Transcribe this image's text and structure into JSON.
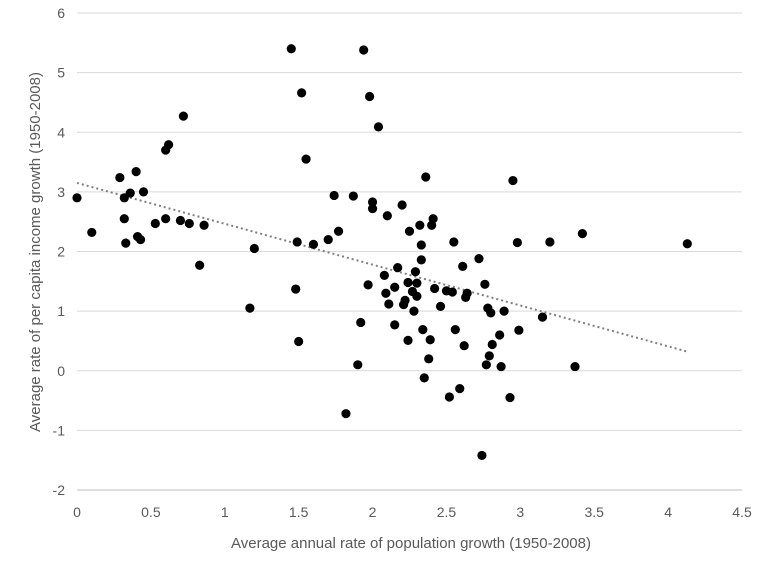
{
  "chart_data": {
    "type": "scatter",
    "title": "",
    "xlabel": "Average annual rate of population growth (1950-2008)",
    "ylabel": "Average rate of per capita income growth (1950-2008)",
    "xlim": [
      0,
      4.5
    ],
    "ylim": [
      -2,
      6
    ],
    "x_ticks": [
      "0",
      "0.5",
      "1",
      "1.5",
      "2",
      "2.5",
      "3",
      "3.5",
      "4",
      "4.5"
    ],
    "y_ticks": [
      "-2",
      "-1",
      "0",
      "1",
      "2",
      "3",
      "4",
      "5",
      "6"
    ],
    "grid": "horizontal",
    "legend": "none",
    "marker_color": "#000000",
    "trendline": {
      "style": "dotted",
      "color": "#7f7f7f",
      "from": [
        0,
        3.15
      ],
      "to": [
        4.13,
        0.32
      ]
    },
    "points": [
      [
        0.0,
        2.9
      ],
      [
        0.1,
        2.32
      ],
      [
        0.29,
        3.24
      ],
      [
        0.32,
        2.55
      ],
      [
        0.32,
        2.9
      ],
      [
        0.33,
        2.14
      ],
      [
        0.36,
        2.98
      ],
      [
        0.4,
        3.34
      ],
      [
        0.41,
        2.25
      ],
      [
        0.43,
        2.2
      ],
      [
        0.45,
        3.0
      ],
      [
        0.53,
        2.47
      ],
      [
        0.6,
        2.55
      ],
      [
        0.6,
        3.7
      ],
      [
        0.62,
        3.79
      ],
      [
        0.7,
        2.52
      ],
      [
        0.72,
        4.27
      ],
      [
        0.76,
        2.47
      ],
      [
        0.83,
        1.77
      ],
      [
        0.86,
        2.44
      ],
      [
        1.17,
        1.05
      ],
      [
        1.2,
        2.05
      ],
      [
        1.45,
        5.4
      ],
      [
        1.48,
        1.37
      ],
      [
        1.49,
        2.16
      ],
      [
        1.5,
        0.49
      ],
      [
        1.52,
        4.66
      ],
      [
        1.55,
        3.55
      ],
      [
        1.6,
        2.12
      ],
      [
        1.7,
        2.2
      ],
      [
        1.74,
        2.94
      ],
      [
        1.77,
        2.34
      ],
      [
        1.82,
        -0.72
      ],
      [
        1.87,
        2.93
      ],
      [
        1.9,
        0.1
      ],
      [
        1.92,
        0.81
      ],
      [
        1.94,
        5.38
      ],
      [
        1.97,
        1.44
      ],
      [
        1.98,
        4.6
      ],
      [
        2.0,
        2.83
      ],
      [
        2.0,
        2.72
      ],
      [
        2.04,
        4.09
      ],
      [
        2.08,
        1.6
      ],
      [
        2.09,
        1.3
      ],
      [
        2.1,
        2.6
      ],
      [
        2.11,
        1.12
      ],
      [
        2.15,
        1.4
      ],
      [
        2.15,
        0.77
      ],
      [
        2.17,
        1.73
      ],
      [
        2.2,
        2.78
      ],
      [
        2.21,
        1.11
      ],
      [
        2.22,
        1.18
      ],
      [
        2.24,
        1.48
      ],
      [
        2.24,
        0.51
      ],
      [
        2.25,
        2.34
      ],
      [
        2.27,
        1.33
      ],
      [
        2.28,
        1.0
      ],
      [
        2.29,
        1.66
      ],
      [
        2.3,
        1.25
      ],
      [
        2.3,
        1.47
      ],
      [
        2.32,
        2.44
      ],
      [
        2.33,
        2.11
      ],
      [
        2.33,
        1.86
      ],
      [
        2.34,
        0.69
      ],
      [
        2.35,
        -0.12
      ],
      [
        2.36,
        3.25
      ],
      [
        2.38,
        0.2
      ],
      [
        2.39,
        0.52
      ],
      [
        2.4,
        2.44
      ],
      [
        2.41,
        2.55
      ],
      [
        2.42,
        1.38
      ],
      [
        2.46,
        1.08
      ],
      [
        2.5,
        1.34
      ],
      [
        2.52,
        -0.44
      ],
      [
        2.54,
        1.32
      ],
      [
        2.55,
        2.16
      ],
      [
        2.56,
        0.69
      ],
      [
        2.59,
        -0.3
      ],
      [
        2.61,
        1.75
      ],
      [
        2.62,
        0.42
      ],
      [
        2.63,
        1.23
      ],
      [
        2.64,
        1.3
      ],
      [
        2.72,
        1.88
      ],
      [
        2.74,
        -1.42
      ],
      [
        2.76,
        1.45
      ],
      [
        2.77,
        0.1
      ],
      [
        2.78,
        1.05
      ],
      [
        2.79,
        0.25
      ],
      [
        2.8,
        0.97
      ],
      [
        2.81,
        0.44
      ],
      [
        2.86,
        0.6
      ],
      [
        2.87,
        0.07
      ],
      [
        2.89,
        1.0
      ],
      [
        2.93,
        -0.45
      ],
      [
        2.95,
        3.19
      ],
      [
        2.98,
        2.15
      ],
      [
        2.99,
        0.68
      ],
      [
        3.15,
        0.9
      ],
      [
        3.2,
        2.16
      ],
      [
        3.37,
        0.07
      ],
      [
        3.42,
        2.3
      ],
      [
        4.13,
        2.13
      ]
    ]
  }
}
